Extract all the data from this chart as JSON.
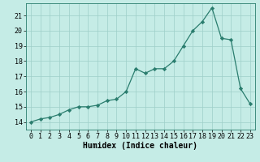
{
  "x": [
    0,
    1,
    2,
    3,
    4,
    5,
    6,
    7,
    8,
    9,
    10,
    11,
    12,
    13,
    14,
    15,
    16,
    17,
    18,
    19,
    20,
    21,
    22,
    23
  ],
  "y": [
    14.0,
    14.2,
    14.3,
    14.5,
    14.8,
    15.0,
    15.0,
    15.1,
    15.4,
    15.5,
    16.0,
    17.5,
    17.2,
    17.5,
    17.5,
    18.0,
    19.0,
    20.0,
    20.6,
    21.5,
    19.5,
    19.4,
    16.2,
    15.2
  ],
  "xlabel": "Humidex (Indice chaleur)",
  "xlim": [
    -0.5,
    23.5
  ],
  "ylim": [
    13.5,
    21.8
  ],
  "yticks": [
    14,
    15,
    16,
    17,
    18,
    19,
    20,
    21
  ],
  "xticks": [
    0,
    1,
    2,
    3,
    4,
    5,
    6,
    7,
    8,
    9,
    10,
    11,
    12,
    13,
    14,
    15,
    16,
    17,
    18,
    19,
    20,
    21,
    22,
    23
  ],
  "line_color": "#2a7d6e",
  "marker_color": "#2a7d6e",
  "bg_color": "#c5ece6",
  "grid_color": "#9ecfc8",
  "xlabel_fontsize": 7,
  "tick_fontsize": 6,
  "xlabel_bold": true
}
